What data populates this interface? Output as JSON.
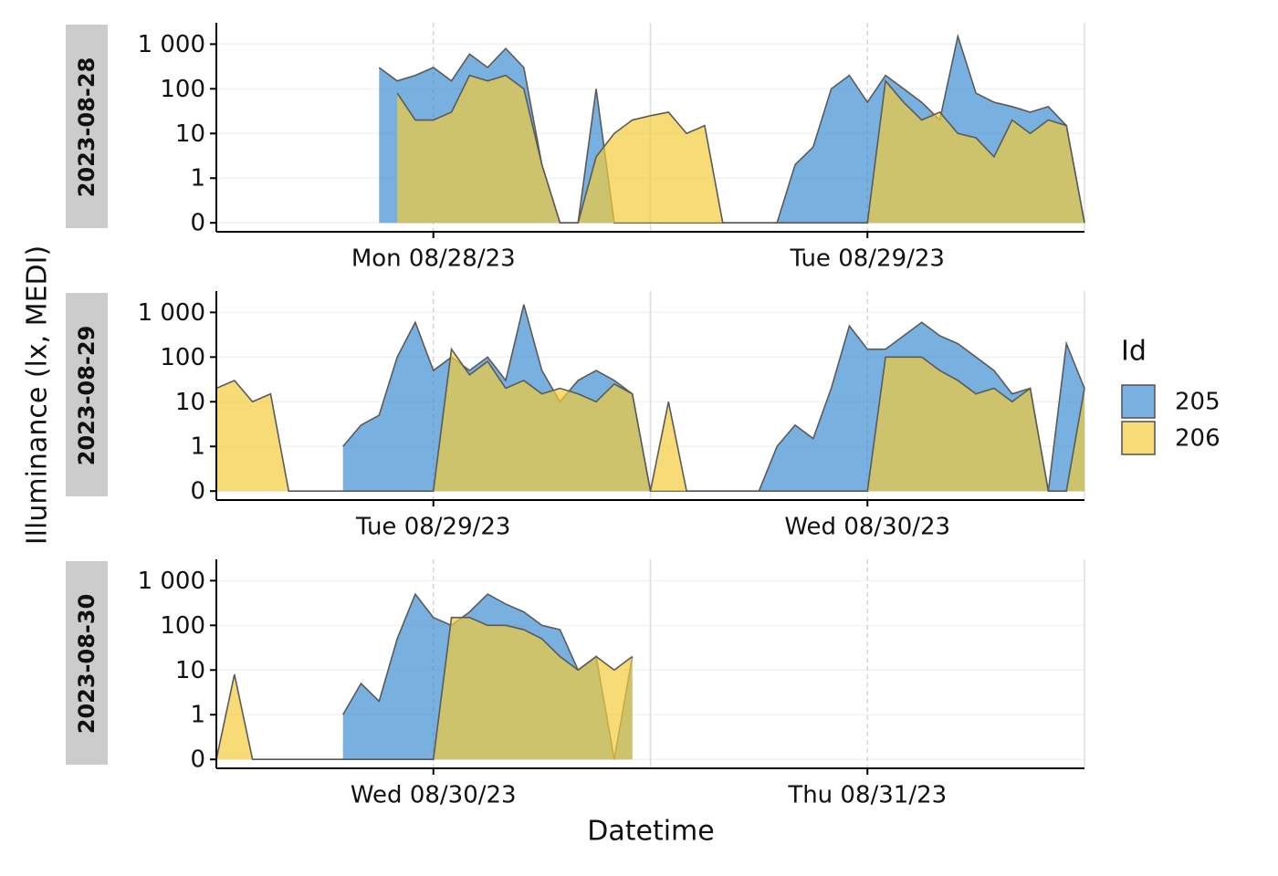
{
  "chart_data": {
    "type": "area",
    "y_label": "Illuminance (lx, MEDI)",
    "x_label": "Datetime",
    "legend_title": "Id",
    "legend": "right",
    "yscale": "symlog",
    "ylim": [
      -0.2,
      3000
    ],
    "yticks": [
      0,
      1,
      10,
      100,
      {
        "value": 1000,
        "label": "1 000"
      }
    ],
    "grid": true,
    "panels": [
      {
        "strip": "2023-08-28",
        "xlim": [
          "2023-08-27T12:00",
          "2023-08-29T12:00"
        ],
        "xticks": [
          {
            "value": "2023-08-28T00:00",
            "label": "Mon 08/28/23"
          },
          {
            "value": "2023-08-29T00:00",
            "label": "Tue 08/29/23"
          }
        ],
        "x_minor_grid": [
          "2023-08-28T12:00",
          "2023-08-29T12:00"
        ],
        "x": [
          "2023-08-27T12:00",
          "2023-08-27T13:00",
          "2023-08-27T14:00",
          "2023-08-27T15:00",
          "2023-08-27T16:00",
          "2023-08-27T17:00",
          "2023-08-27T18:00",
          "2023-08-27T19:00",
          "2023-08-27T20:00",
          "2023-08-27T21:00",
          "2023-08-27T22:00",
          "2023-08-27T23:00",
          "2023-08-28T00:00",
          "2023-08-28T01:00",
          "2023-08-28T02:00",
          "2023-08-28T03:00",
          "2023-08-28T04:00",
          "2023-08-28T05:00",
          "2023-08-28T06:00",
          "2023-08-28T07:00",
          "2023-08-28T08:00",
          "2023-08-28T09:00",
          "2023-08-28T10:00",
          "2023-08-28T11:00",
          "2023-08-28T12:00",
          "2023-08-28T13:00",
          "2023-08-28T14:00",
          "2023-08-28T15:00",
          "2023-08-28T16:00",
          "2023-08-28T17:00",
          "2023-08-28T18:00",
          "2023-08-28T19:00",
          "2023-08-28T20:00",
          "2023-08-28T21:00",
          "2023-08-28T22:00",
          "2023-08-28T23:00",
          "2023-08-29T00:00",
          "2023-08-29T01:00",
          "2023-08-29T02:00",
          "2023-08-29T03:00",
          "2023-08-29T04:00",
          "2023-08-29T05:00",
          "2023-08-29T06:00",
          "2023-08-29T07:00",
          "2023-08-29T08:00",
          "2023-08-29T09:00",
          "2023-08-29T10:00",
          "2023-08-29T11:00",
          "2023-08-29T12:00"
        ],
        "series": [
          {
            "name": "205",
            "color": "#3f8fd2",
            "values": [
              null,
              null,
              null,
              null,
              null,
              null,
              null,
              null,
              null,
              300,
              150,
              200,
              300,
              150,
              600,
              300,
              800,
              300,
              2,
              0,
              0,
              100,
              0,
              0,
              0,
              0,
              0,
              0,
              0,
              0,
              0,
              0,
              2,
              5,
              100,
              200,
              50,
              200,
              100,
              50,
              20,
              1500,
              80,
              50,
              40,
              30,
              40,
              15,
              0
            ]
          },
          {
            "name": "206",
            "color": "#f2cc3c",
            "values": [
              null,
              null,
              null,
              null,
              null,
              null,
              null,
              null,
              null,
              null,
              80,
              20,
              20,
              30,
              200,
              150,
              200,
              100,
              2,
              0,
              0,
              3,
              10,
              20,
              25,
              30,
              10,
              15,
              0,
              0,
              0,
              0,
              0,
              0,
              0,
              0,
              0,
              150,
              50,
              20,
              30,
              10,
              8,
              3,
              20,
              10,
              20,
              15,
              0
            ]
          }
        ]
      },
      {
        "strip": "2023-08-29",
        "xlim": [
          "2023-08-28T12:00",
          "2023-08-30T12:00"
        ],
        "xticks": [
          {
            "value": "2023-08-29T00:00",
            "label": "Tue 08/29/23"
          },
          {
            "value": "2023-08-30T00:00",
            "label": "Wed 08/30/23"
          }
        ],
        "x_minor_grid": [
          "2023-08-29T12:00",
          "2023-08-30T12:00"
        ],
        "x": [
          "2023-08-28T12:00",
          "2023-08-28T13:00",
          "2023-08-28T14:00",
          "2023-08-28T15:00",
          "2023-08-28T16:00",
          "2023-08-28T17:00",
          "2023-08-28T18:00",
          "2023-08-28T19:00",
          "2023-08-28T20:00",
          "2023-08-28T21:00",
          "2023-08-28T22:00",
          "2023-08-28T23:00",
          "2023-08-29T00:00",
          "2023-08-29T01:00",
          "2023-08-29T02:00",
          "2023-08-29T03:00",
          "2023-08-29T04:00",
          "2023-08-29T05:00",
          "2023-08-29T06:00",
          "2023-08-29T07:00",
          "2023-08-29T08:00",
          "2023-08-29T09:00",
          "2023-08-29T10:00",
          "2023-08-29T11:00",
          "2023-08-29T12:00",
          "2023-08-29T13:00",
          "2023-08-29T14:00",
          "2023-08-29T15:00",
          "2023-08-29T16:00",
          "2023-08-29T17:00",
          "2023-08-29T18:00",
          "2023-08-29T19:00",
          "2023-08-29T20:00",
          "2023-08-29T21:00",
          "2023-08-29T22:00",
          "2023-08-29T23:00",
          "2023-08-30T00:00",
          "2023-08-30T01:00",
          "2023-08-30T02:00",
          "2023-08-30T03:00",
          "2023-08-30T04:00",
          "2023-08-30T05:00",
          "2023-08-30T06:00",
          "2023-08-30T07:00",
          "2023-08-30T08:00",
          "2023-08-30T09:00",
          "2023-08-30T10:00",
          "2023-08-30T11:00",
          "2023-08-30T12:00"
        ],
        "series": [
          {
            "name": "205",
            "color": "#3f8fd2",
            "values": [
              null,
              null,
              null,
              null,
              null,
              null,
              null,
              1,
              3,
              5,
              100,
              600,
              50,
              100,
              50,
              100,
              30,
              1500,
              50,
              10,
              30,
              50,
              30,
              15,
              0,
              0,
              0,
              0,
              0,
              0,
              0,
              1,
              3,
              1.5,
              20,
              500,
              150,
              150,
              300,
              600,
              300,
              200,
              100,
              50,
              15,
              20,
              0,
              200,
              20
            ]
          },
          {
            "name": "206",
            "color": "#f2cc3c",
            "values": [
              20,
              30,
              10,
              15,
              0,
              0,
              0,
              0,
              0,
              0,
              0,
              0,
              0,
              150,
              40,
              80,
              20,
              30,
              15,
              20,
              15,
              10,
              25,
              15,
              0,
              10,
              0,
              0,
              0,
              0,
              0,
              0,
              0,
              0,
              0,
              0,
              0,
              100,
              100,
              100,
              50,
              30,
              15,
              20,
              10,
              20,
              0,
              0,
              20
            ]
          }
        ]
      },
      {
        "strip": "2023-08-30",
        "xlim": [
          "2023-08-29T12:00",
          "2023-08-31T12:00"
        ],
        "xticks": [
          {
            "value": "2023-08-30T00:00",
            "label": "Wed 08/30/23"
          },
          {
            "value": "2023-08-31T00:00",
            "label": "Thu 08/31/23"
          }
        ],
        "x_minor_grid": [
          "2023-08-30T12:00",
          "2023-08-31T12:00"
        ],
        "x": [
          "2023-08-29T12:00",
          "2023-08-29T13:00",
          "2023-08-29T14:00",
          "2023-08-29T15:00",
          "2023-08-29T16:00",
          "2023-08-29T17:00",
          "2023-08-29T18:00",
          "2023-08-29T19:00",
          "2023-08-29T20:00",
          "2023-08-29T21:00",
          "2023-08-29T22:00",
          "2023-08-29T23:00",
          "2023-08-30T00:00",
          "2023-08-30T01:00",
          "2023-08-30T02:00",
          "2023-08-30T03:00",
          "2023-08-30T04:00",
          "2023-08-30T05:00",
          "2023-08-30T06:00",
          "2023-08-30T07:00",
          "2023-08-30T08:00",
          "2023-08-30T09:00",
          "2023-08-30T10:00",
          "2023-08-30T11:00",
          "2023-08-30T12:00",
          "2023-08-30T13:00",
          "2023-08-30T14:00",
          "2023-08-30T15:00",
          "2023-08-30T16:00",
          "2023-08-30T17:00",
          "2023-08-30T18:00",
          "2023-08-30T19:00",
          "2023-08-30T20:00",
          "2023-08-30T21:00",
          "2023-08-30T22:00",
          "2023-08-30T23:00",
          "2023-08-31T00:00",
          "2023-08-31T01:00",
          "2023-08-31T02:00",
          "2023-08-31T03:00",
          "2023-08-31T04:00",
          "2023-08-31T05:00",
          "2023-08-31T06:00",
          "2023-08-31T07:00",
          "2023-08-31T08:00",
          "2023-08-31T09:00",
          "2023-08-31T10:00",
          "2023-08-31T11:00",
          "2023-08-31T12:00"
        ],
        "series": [
          {
            "name": "205",
            "color": "#3f8fd2",
            "values": [
              null,
              null,
              null,
              null,
              null,
              null,
              null,
              1,
              5,
              2,
              50,
              500,
              150,
              100,
              200,
              500,
              300,
              200,
              100,
              80,
              10,
              20,
              0,
              20,
              null,
              null,
              null,
              null,
              null,
              null,
              null,
              null,
              null,
              null,
              null,
              null,
              null,
              null,
              null,
              null,
              null,
              null,
              null,
              null,
              null,
              null,
              null,
              null,
              null
            ]
          },
          {
            "name": "206",
            "color": "#f2cc3c",
            "values": [
              0,
              8,
              0,
              0,
              0,
              0,
              0,
              0,
              0,
              0,
              0,
              0,
              0,
              150,
              150,
              100,
              100,
              80,
              50,
              20,
              10,
              20,
              10,
              20,
              null,
              null,
              null,
              null,
              null,
              null,
              null,
              null,
              null,
              null,
              null,
              null,
              null,
              null,
              null,
              null,
              null,
              null,
              null,
              null,
              null,
              null,
              null,
              null,
              null
            ]
          }
        ]
      }
    ]
  }
}
